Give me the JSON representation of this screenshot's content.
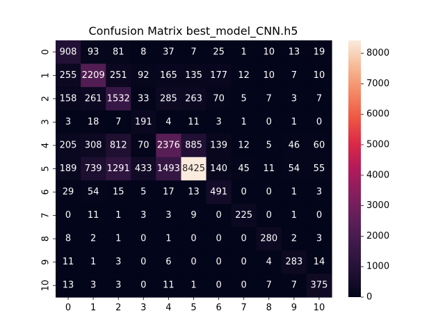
{
  "chart_data": {
    "type": "heatmap",
    "title": "Confusion Matrix best_model_CNN.h5",
    "xlabel": "",
    "ylabel": "",
    "x_categories": [
      "0",
      "1",
      "2",
      "3",
      "4",
      "5",
      "6",
      "7",
      "8",
      "9",
      "10"
    ],
    "y_categories": [
      "0",
      "1",
      "2",
      "3",
      "4",
      "5",
      "6",
      "7",
      "8",
      "9",
      "10"
    ],
    "values": [
      [
        908,
        93,
        81,
        8,
        37,
        7,
        25,
        1,
        10,
        13,
        19
      ],
      [
        255,
        2209,
        251,
        92,
        165,
        135,
        177,
        12,
        10,
        7,
        10
      ],
      [
        158,
        261,
        1532,
        33,
        285,
        263,
        70,
        5,
        7,
        3,
        7
      ],
      [
        3,
        18,
        7,
        191,
        4,
        11,
        3,
        1,
        0,
        1,
        0
      ],
      [
        205,
        308,
        812,
        70,
        2376,
        885,
        139,
        12,
        5,
        46,
        60
      ],
      [
        189,
        739,
        1291,
        433,
        1493,
        8425,
        140,
        45,
        11,
        54,
        55
      ],
      [
        29,
        54,
        15,
        5,
        17,
        13,
        491,
        0,
        0,
        1,
        3
      ],
      [
        0,
        11,
        1,
        3,
        3,
        9,
        0,
        225,
        0,
        1,
        0
      ],
      [
        8,
        2,
        1,
        0,
        1,
        0,
        0,
        0,
        280,
        2,
        3
      ],
      [
        11,
        1,
        3,
        0,
        6,
        0,
        0,
        0,
        4,
        283,
        14
      ],
      [
        13,
        3,
        3,
        0,
        11,
        1,
        0,
        0,
        7,
        7,
        375
      ]
    ],
    "colorbar": {
      "colormap": "rocket",
      "range": [
        0,
        8425
      ],
      "ticks": [
        0,
        1000,
        2000,
        3000,
        4000,
        5000,
        6000,
        7000,
        8000
      ],
      "tick_labels": [
        "0",
        "1000",
        "2000",
        "3000",
        "4000",
        "5000",
        "6000",
        "7000",
        "8000"
      ]
    }
  }
}
